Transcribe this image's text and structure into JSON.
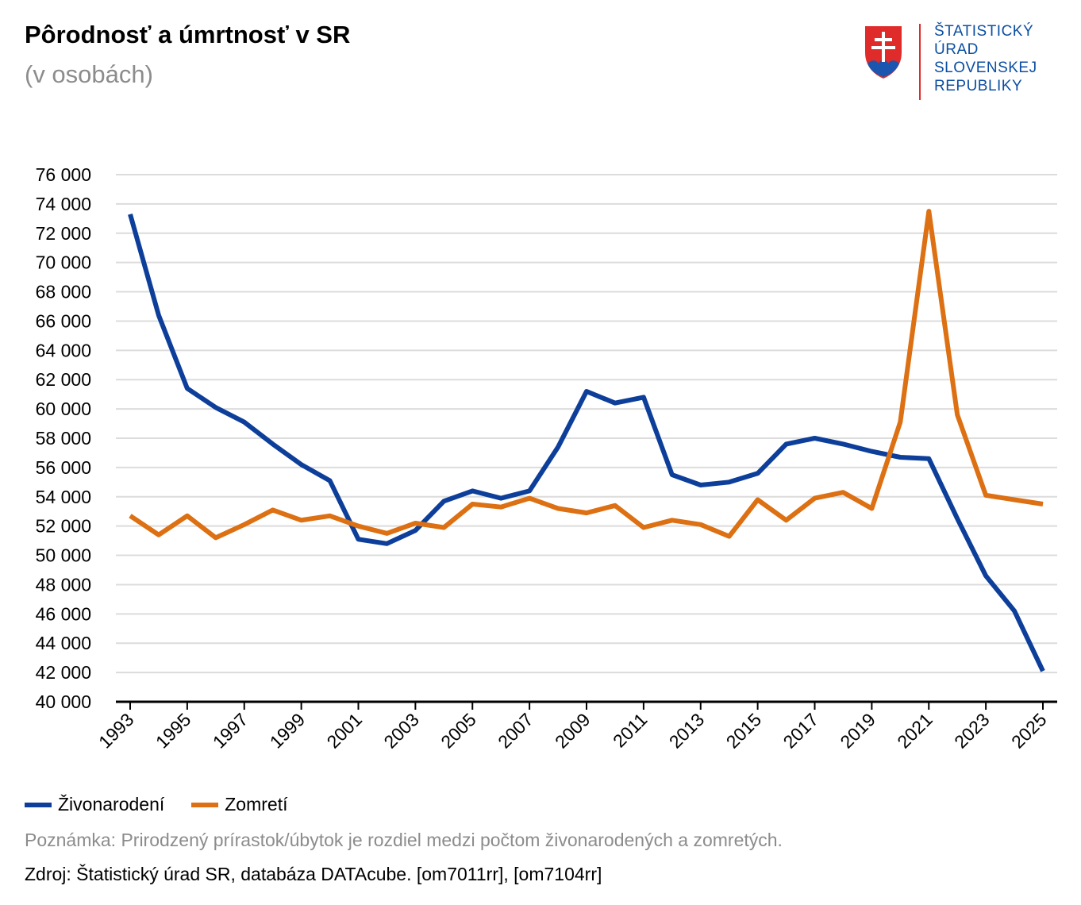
{
  "header": {
    "title": "Pôrodnosť a úmrtnosť v SR",
    "subtitle": "(v osobách)"
  },
  "logo": {
    "lines": [
      "ŠTATISTICKÝ",
      "ÚRAD",
      "SLOVENSKEJ",
      "REPUBLIKY"
    ]
  },
  "chart_data": {
    "type": "line",
    "title": "Pôrodnosť a úmrtnosť v SR",
    "subtitle": "(v osobách)",
    "ylim": [
      40000,
      76000
    ],
    "y_ticks": [
      40000,
      42000,
      44000,
      46000,
      48000,
      50000,
      52000,
      54000,
      56000,
      58000,
      60000,
      62000,
      64000,
      66000,
      68000,
      70000,
      72000,
      74000,
      76000
    ],
    "y_tick_labels": [
      "40 000",
      "42 000",
      "44 000",
      "46 000",
      "48 000",
      "50 000",
      "52 000",
      "54 000",
      "56 000",
      "58 000",
      "60 000",
      "62 000",
      "64 000",
      "66 000",
      "68 000",
      "70 000",
      "72 000",
      "74 000",
      "76 000"
    ],
    "x": [
      1993,
      1994,
      1995,
      1996,
      1997,
      1998,
      1999,
      2000,
      2001,
      2002,
      2003,
      2004,
      2005,
      2006,
      2007,
      2008,
      2009,
      2010,
      2011,
      2012,
      2013,
      2014,
      2015,
      2016,
      2017,
      2018,
      2019,
      2020,
      2021,
      2022,
      2023,
      2024,
      2025
    ],
    "x_tick_labels": [
      "1993",
      "1995",
      "1997",
      "1999",
      "2001",
      "2003",
      "2005",
      "2007",
      "2009",
      "2011",
      "2013",
      "2015",
      "2017",
      "2019",
      "2021",
      "2023",
      "2025"
    ],
    "grid": true,
    "legend_position": "bottom-left",
    "series": [
      {
        "name": "Živonarodení",
        "color": "#0d3f9a",
        "values": [
          73300,
          66400,
          61400,
          60100,
          59100,
          57600,
          56200,
          55100,
          51100,
          50800,
          51700,
          53700,
          54400,
          53900,
          54400,
          57400,
          61200,
          60400,
          60800,
          55500,
          54800,
          55000,
          55600,
          57600,
          58000,
          57600,
          57100,
          56700,
          56600,
          52500,
          48600,
          46200,
          42100
        ]
      },
      {
        "name": "Zomretí",
        "color": "#dc7012",
        "values": [
          52700,
          51400,
          52700,
          51200,
          52100,
          53100,
          52400,
          52700,
          52000,
          51500,
          52200,
          51900,
          53500,
          53300,
          53900,
          53200,
          52900,
          53400,
          51900,
          52400,
          52100,
          51300,
          53800,
          52400,
          53900,
          54300,
          53200,
          59100,
          73500,
          59600,
          54100,
          53800,
          53500
        ]
      }
    ]
  },
  "legend": {
    "items": [
      {
        "label": "Živonarodení",
        "color": "#0d3f9a"
      },
      {
        "label": "Zomretí",
        "color": "#dc7012"
      }
    ]
  },
  "footer": {
    "note": "Poznámka: Prirodzený prírastok/úbytok je rozdiel medzi počtom živonarodených a zomretých.",
    "source": "Zdroj: Štatistický úrad SR, databáza DATAcube. [om7011rr], [om7104rr]"
  }
}
